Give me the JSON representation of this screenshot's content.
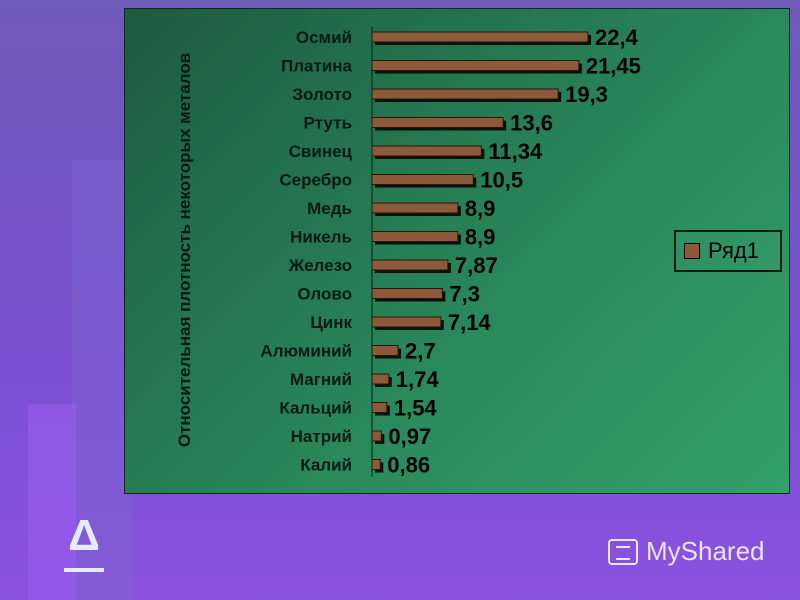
{
  "chart_data": {
    "type": "bar",
    "orientation": "horizontal",
    "ylabel": "Относительная плотность некоторых металов",
    "categories": [
      "Осмий",
      "Платина",
      "Золото",
      "Ртуть",
      "Свинец",
      "Серебро",
      "Медь",
      "Никель",
      "Железо",
      "Олово",
      "Цинк",
      "Алюминий",
      "Магний",
      "Кальций",
      "Натрий",
      "Калий"
    ],
    "series": [
      {
        "name": "Ряд1",
        "values": [
          22.4,
          21.45,
          19.3,
          13.6,
          11.34,
          10.5,
          8.9,
          8.9,
          7.87,
          7.3,
          7.14,
          2.7,
          1.74,
          1.54,
          0.97,
          0.86
        ],
        "labels": [
          "22,4",
          "21,45",
          "19,3",
          "13,6",
          "11,34",
          "10,5",
          "8,9",
          "8,9",
          "7,87",
          "7,3",
          "7,14",
          "2,7",
          "1,74",
          "1,54",
          "0,97",
          "0,86"
        ]
      }
    ],
    "xlim": [
      0,
      22.4
    ],
    "legend_position": "right",
    "grid": false,
    "bar_color": "#8c5a3a"
  },
  "legend": {
    "label": "Ряд1"
  },
  "decor": {
    "delta_symbol": "Δ",
    "watermark": "MyShared"
  }
}
